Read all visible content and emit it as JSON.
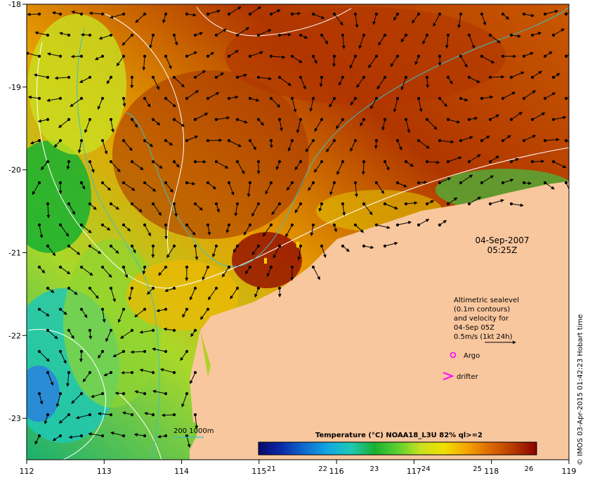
{
  "map": {
    "x_ticks": [
      "112",
      "113",
      "114",
      "115",
      "116",
      "117",
      "118",
      "119"
    ],
    "y_ticks": [
      "-18",
      "-19",
      "-20",
      "-21",
      "-22",
      "-23"
    ],
    "date": "04-Sep-2007",
    "time": "05:25Z",
    "info_lines": [
      "Altimetric sealevel",
      "(0.1m contours)",
      "and velocity for",
      "04-Sep 05Z",
      "0.5m/s (1kt 24h)"
    ],
    "argo_label": "Argo",
    "drifter_label": "drifter",
    "isobath_label": "200  1000m",
    "colorbar_title": "Temperature (°C) NOAA18_L3U 82% ql>=2",
    "colorbar_ticks": [
      "21",
      "22",
      "23",
      "24",
      "25",
      "26"
    ],
    "credit": "© IMOS 03-Apr-2015 01:42:23 Hobart time",
    "colors": {
      "land": "#f9c79e",
      "argo": "#ff00ff",
      "drifter": "#ff00ff",
      "isobath": "#3cc0c0",
      "contour": "#ffffff"
    },
    "colorbar_colors": [
      "#08086b",
      "#0a2aa8",
      "#0f6cd0",
      "#12a8e0",
      "#1fc8b4",
      "#18b030",
      "#5cd030",
      "#c8e020",
      "#f0e000",
      "#f5a400",
      "#dd6800",
      "#b43a00",
      "#8b0000"
    ]
  }
}
